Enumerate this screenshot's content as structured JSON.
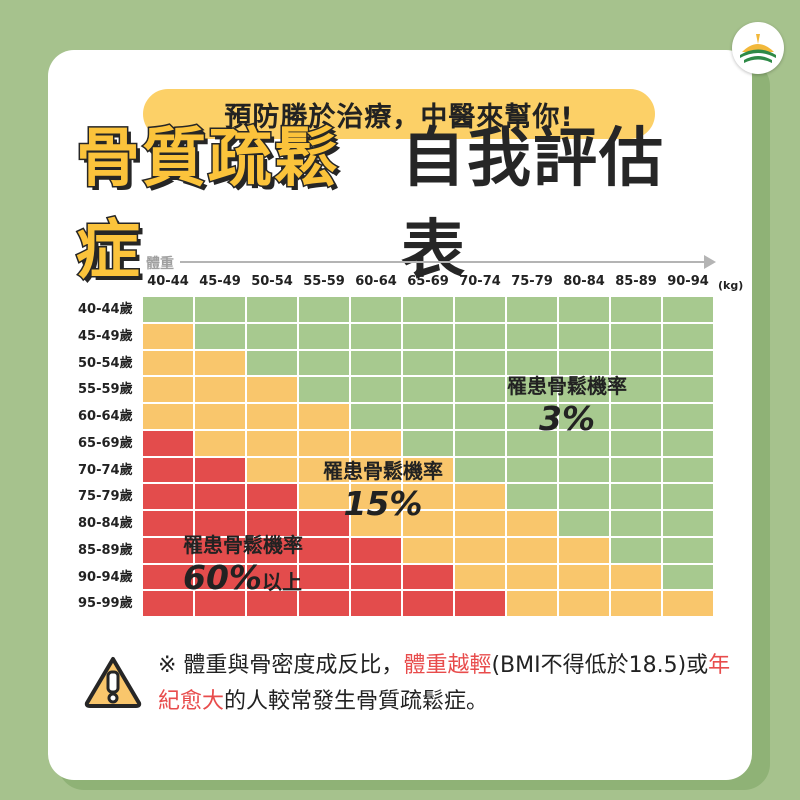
{
  "header": {
    "subtitle": "預防勝於治療，中醫來幫你!",
    "title_highlight": "骨質疏鬆症",
    "title_rest": "自我評估表"
  },
  "axis": {
    "weight_label": "體重",
    "weight_unit": "(kg)",
    "weight_ranges": [
      "40-44",
      "45-49",
      "50-54",
      "55-59",
      "60-64",
      "65-69",
      "70-74",
      "75-79",
      "80-84",
      "85-89",
      "90-94"
    ],
    "age_ranges": [
      "40-44歲",
      "45-49歲",
      "50-54歲",
      "55-59歲",
      "60-64歲",
      "65-69歲",
      "70-74歲",
      "75-79歲",
      "80-84歲",
      "85-89歲",
      "90-94歲",
      "95-99歲"
    ]
  },
  "risk_grid": [
    [
      "low",
      "low",
      "low",
      "low",
      "low",
      "low",
      "low",
      "low",
      "low",
      "low",
      "low"
    ],
    [
      "mid",
      "low",
      "low",
      "low",
      "low",
      "low",
      "low",
      "low",
      "low",
      "low",
      "low"
    ],
    [
      "mid",
      "mid",
      "low",
      "low",
      "low",
      "low",
      "low",
      "low",
      "low",
      "low",
      "low"
    ],
    [
      "mid",
      "mid",
      "mid",
      "low",
      "low",
      "low",
      "low",
      "low",
      "low",
      "low",
      "low"
    ],
    [
      "mid",
      "mid",
      "mid",
      "mid",
      "low",
      "low",
      "low",
      "low",
      "low",
      "low",
      "low"
    ],
    [
      "high",
      "mid",
      "mid",
      "mid",
      "mid",
      "low",
      "low",
      "low",
      "low",
      "low",
      "low"
    ],
    [
      "high",
      "high",
      "mid",
      "mid",
      "mid",
      "mid",
      "low",
      "low",
      "low",
      "low",
      "low"
    ],
    [
      "high",
      "high",
      "high",
      "mid",
      "mid",
      "mid",
      "mid",
      "low",
      "low",
      "low",
      "low"
    ],
    [
      "high",
      "high",
      "high",
      "high",
      "mid",
      "mid",
      "mid",
      "mid",
      "low",
      "low",
      "low"
    ],
    [
      "high",
      "high",
      "high",
      "high",
      "high",
      "mid",
      "mid",
      "mid",
      "mid",
      "low",
      "low"
    ],
    [
      "high",
      "high",
      "high",
      "high",
      "high",
      "high",
      "mid",
      "mid",
      "mid",
      "mid",
      "low"
    ],
    [
      "high",
      "high",
      "high",
      "high",
      "high",
      "high",
      "high",
      "mid",
      "mid",
      "mid",
      "mid"
    ]
  ],
  "colors": {
    "low": "#a7c98f",
    "mid": "#f9c66c",
    "high": "#e34c4c"
  },
  "labels": {
    "low": {
      "caption": "罹患骨鬆機率",
      "value": "3%"
    },
    "mid": {
      "caption": "罹患骨鬆機率",
      "value": "15%"
    },
    "high": {
      "caption": "罹患骨鬆機率",
      "value": "60%",
      "suffix": "以上"
    }
  },
  "note": {
    "part1": "※ 體重與骨密度成反比，",
    "hl1": "體重越輕",
    "part2": "(BMI不得低於18.5)或",
    "hl2": "年紀愈大",
    "part3": "的人較常發生骨質疏鬆症。"
  },
  "icons": {
    "logo": "agency-logo-icon",
    "warning": "warning-icon"
  }
}
